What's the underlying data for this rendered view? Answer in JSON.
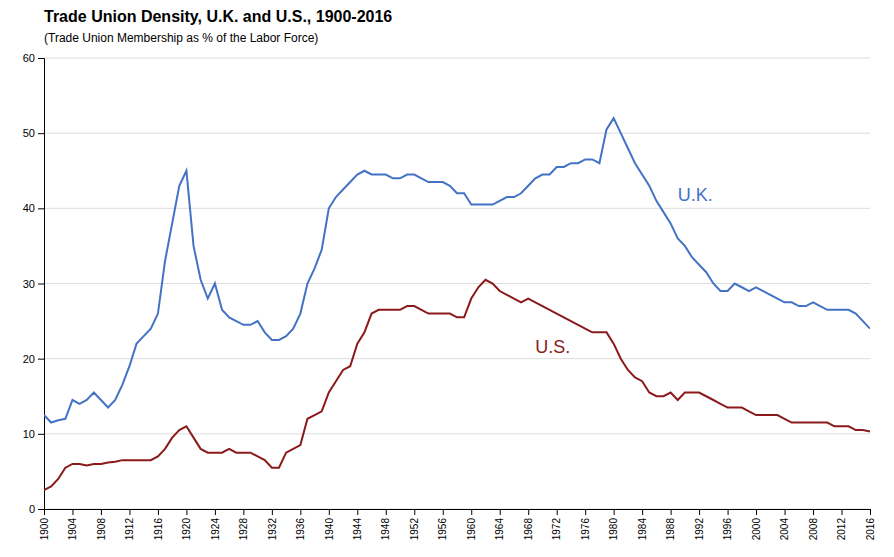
{
  "chart_data": {
    "type": "line",
    "title": "Trade Union Density, U.K. and U.S., 1900-2016",
    "subtitle": "(Trade Union Membership  as % of the Labor Force)",
    "x": [
      1900,
      1901,
      1902,
      1903,
      1904,
      1905,
      1906,
      1907,
      1908,
      1909,
      1910,
      1911,
      1912,
      1913,
      1914,
      1915,
      1916,
      1917,
      1918,
      1919,
      1920,
      1921,
      1922,
      1923,
      1924,
      1925,
      1926,
      1927,
      1928,
      1929,
      1930,
      1931,
      1932,
      1933,
      1934,
      1935,
      1936,
      1937,
      1938,
      1939,
      1940,
      1941,
      1942,
      1943,
      1944,
      1945,
      1946,
      1947,
      1948,
      1949,
      1950,
      1951,
      1952,
      1953,
      1954,
      1955,
      1956,
      1957,
      1958,
      1959,
      1960,
      1961,
      1962,
      1963,
      1964,
      1965,
      1966,
      1967,
      1968,
      1969,
      1970,
      1971,
      1972,
      1973,
      1974,
      1975,
      1976,
      1977,
      1978,
      1979,
      1980,
      1981,
      1982,
      1983,
      1984,
      1985,
      1986,
      1987,
      1988,
      1989,
      1990,
      1991,
      1992,
      1993,
      1994,
      1995,
      1996,
      1997,
      1998,
      1999,
      2000,
      2001,
      2002,
      2003,
      2004,
      2005,
      2006,
      2007,
      2008,
      2009,
      2010,
      2011,
      2012,
      2013,
      2014,
      2015,
      2016
    ],
    "series": [
      {
        "name": "U.K.",
        "color": "#4472C4",
        "values": [
          12.5,
          11.5,
          11.8,
          12.0,
          14.5,
          14.0,
          14.5,
          15.5,
          14.5,
          13.5,
          14.5,
          16.5,
          19.0,
          22.0,
          23.0,
          24.0,
          26.0,
          33.0,
          38.0,
          43.0,
          45.0,
          35.0,
          30.5,
          28.0,
          30.0,
          26.5,
          25.5,
          25.0,
          24.5,
          24.5,
          25.0,
          23.5,
          22.5,
          22.5,
          23.0,
          24.0,
          26.0,
          30.0,
          32.0,
          34.5,
          40.0,
          41.5,
          42.5,
          43.5,
          44.5,
          45.0,
          44.5,
          44.5,
          44.5,
          44.0,
          44.0,
          44.5,
          44.5,
          44.0,
          43.5,
          43.5,
          43.5,
          43.0,
          42.0,
          42.0,
          40.5,
          40.5,
          40.5,
          40.5,
          41.0,
          41.5,
          41.5,
          42.0,
          43.0,
          44.0,
          44.5,
          44.5,
          45.5,
          45.5,
          46.0,
          46.0,
          46.5,
          46.5,
          46.0,
          50.5,
          52.0,
          50.0,
          48.0,
          46.0,
          44.5,
          43.0,
          41.0,
          39.5,
          38.0,
          36.0,
          35.0,
          33.5,
          32.5,
          31.5,
          30.0,
          29.0,
          29.0,
          30.0,
          29.5,
          29.0,
          29.5,
          29.0,
          28.5,
          28.0,
          27.5,
          27.5,
          27.0,
          27.0,
          27.5,
          27.0,
          26.5,
          26.5,
          26.5,
          26.5,
          26.0,
          25.0,
          24.0
        ]
      },
      {
        "name": "U.S.",
        "color": "#8B1A1A",
        "values": [
          2.5,
          3.0,
          4.0,
          5.5,
          6.0,
          6.0,
          5.8,
          6.0,
          6.0,
          6.2,
          6.3,
          6.5,
          6.5,
          6.5,
          6.5,
          6.5,
          7.0,
          8.0,
          9.5,
          10.5,
          11.0,
          9.5,
          8.0,
          7.5,
          7.5,
          7.5,
          8.0,
          7.5,
          7.5,
          7.5,
          7.0,
          6.5,
          5.5,
          5.5,
          7.5,
          8.0,
          8.5,
          12.0,
          12.5,
          13.0,
          15.5,
          17.0,
          18.5,
          19.0,
          22.0,
          23.5,
          26.0,
          26.5,
          26.5,
          26.5,
          26.5,
          27.0,
          27.0,
          26.5,
          26.0,
          26.0,
          26.0,
          26.0,
          25.5,
          25.5,
          28.0,
          29.5,
          30.5,
          30.0,
          29.0,
          28.5,
          28.0,
          27.5,
          28.0,
          27.5,
          27.0,
          26.5,
          26.0,
          25.5,
          25.0,
          24.5,
          24.0,
          23.5,
          23.5,
          23.5,
          22.0,
          20.0,
          18.5,
          17.5,
          17.0,
          15.5,
          15.0,
          15.0,
          15.5,
          14.5,
          15.5,
          15.5,
          15.5,
          15.0,
          14.5,
          14.0,
          13.5,
          13.5,
          13.5,
          13.0,
          12.5,
          12.5,
          12.5,
          12.5,
          12.0,
          11.5,
          11.5,
          11.5,
          11.5,
          11.5,
          11.5,
          11.0,
          11.0,
          11.0,
          10.5,
          10.5,
          10.3
        ]
      }
    ],
    "xlim": [
      1900,
      2016
    ],
    "xticks": [
      1900,
      1904,
      1908,
      1912,
      1916,
      1920,
      1924,
      1928,
      1932,
      1936,
      1940,
      1944,
      1948,
      1952,
      1956,
      1960,
      1964,
      1968,
      1972,
      1976,
      1980,
      1984,
      1988,
      1992,
      1996,
      2000,
      2004,
      2008,
      2012,
      2016
    ],
    "ylim": [
      0,
      60
    ],
    "yticks": [
      0,
      10,
      20,
      30,
      40,
      50,
      60
    ],
    "grid": true
  }
}
